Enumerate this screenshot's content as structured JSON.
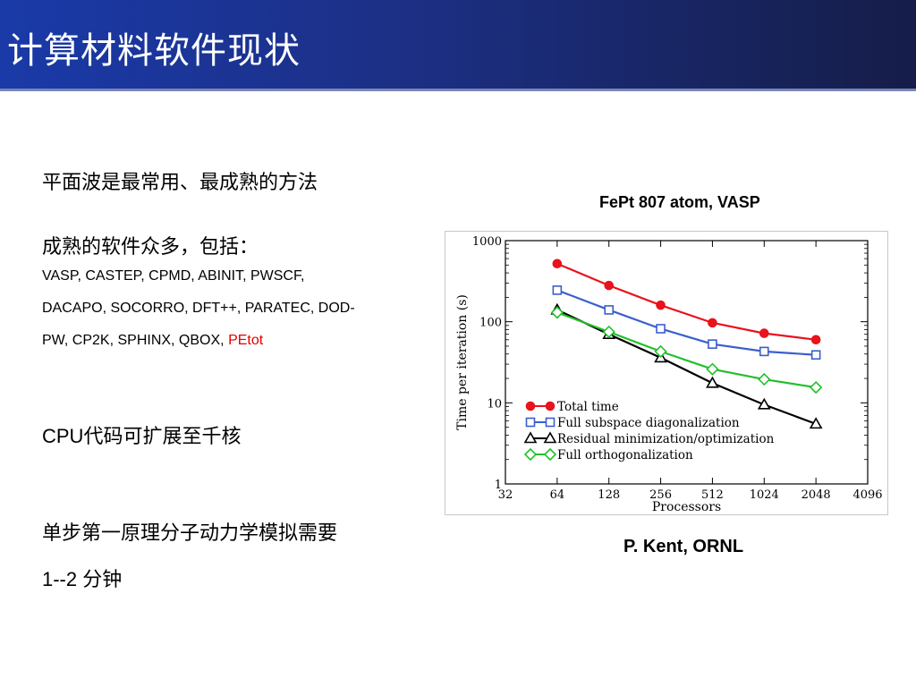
{
  "slide": {
    "title": "计算材料软件现状",
    "bullet1": "平面波是最常用、最成熟的方法",
    "bullet2": "成熟的软件众多，包括：",
    "software_line1": "VASP, CASTEP, CPMD, ABINIT, PWSCF,",
    "software_line2": "DACAPO, SOCORRO, DFT++, PARATEC, DOD-",
    "software_line3": "PW, CP2K, SPHINX, QBOX, ",
    "software_highlight": "PEtot",
    "bullet3": "CPU代码可扩展至千核",
    "bullet4_line1": "单步第一原理分子动力学模拟需要",
    "bullet4_line2": "1--2 分钟",
    "chart_heading": "FePt 807 atom, VASP",
    "credit": "P. Kent, ORNL"
  },
  "colors": {
    "title_bg_left": "#1a3aa8",
    "title_bg_right": "#151d48",
    "highlight": "#e00000"
  },
  "chart_data": {
    "type": "line",
    "title": "FePt 807 atom, VASP",
    "xlabel": "Processors",
    "ylabel": "Time per iteration (s)",
    "xscale": "log2",
    "yscale": "log10",
    "xlim": [
      32,
      4096
    ],
    "ylim": [
      1,
      1000
    ],
    "xticks": [
      32,
      64,
      128,
      256,
      512,
      1024,
      2048,
      4096
    ],
    "yticks": [
      1,
      10,
      100,
      1000
    ],
    "x": [
      64,
      128,
      256,
      512,
      1024,
      2048
    ],
    "series": [
      {
        "name": "Total time",
        "color": "#e8131b",
        "marker": "circle-filled",
        "values": [
          520,
          280,
          160,
          97,
          72,
          60
        ]
      },
      {
        "name": "Full subspace diagonalization",
        "color": "#3a5fcd",
        "marker": "square-open",
        "values": [
          245,
          140,
          82,
          53,
          43,
          39
        ]
      },
      {
        "name": "Residual minimization/optimization",
        "color": "#000000",
        "marker": "triangle-open",
        "values": [
          140,
          70,
          36,
          17.5,
          9.5,
          5.5
        ]
      },
      {
        "name": "Full orthogonalization",
        "color": "#22c02a",
        "marker": "diamond-open",
        "values": [
          130,
          75,
          43,
          26,
          19.5,
          15.5
        ]
      }
    ],
    "legend_position": "bottom-left",
    "grid": false
  }
}
